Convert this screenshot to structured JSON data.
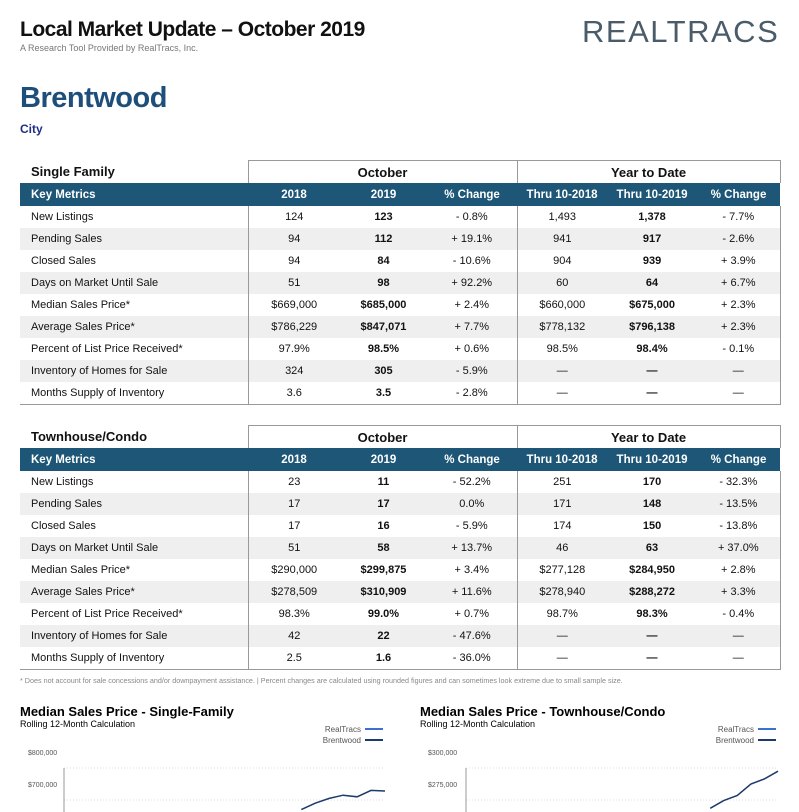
{
  "header": {
    "title": "Local Market Update – October 2019",
    "subtitle": "A Research Tool Provided by RealTracs, Inc.",
    "logo": "REALTRACS"
  },
  "location": {
    "name": "Brentwood",
    "type": "City"
  },
  "tables": [
    {
      "section": "Single Family",
      "groups": [
        "October",
        "Year to Date"
      ],
      "columns": [
        "Key Metrics",
        "2018",
        "2019",
        "% Change",
        "Thru 10-2018",
        "Thru 10-2019",
        "% Change"
      ],
      "rows": [
        [
          "New Listings",
          "124",
          "123",
          "- 0.8%",
          "1,493",
          "1,378",
          "- 7.7%"
        ],
        [
          "Pending Sales",
          "94",
          "112",
          "+ 19.1%",
          "941",
          "917",
          "- 2.6%"
        ],
        [
          "Closed Sales",
          "94",
          "84",
          "- 10.6%",
          "904",
          "939",
          "+ 3.9%"
        ],
        [
          "Days on Market Until Sale",
          "51",
          "98",
          "+ 92.2%",
          "60",
          "64",
          "+ 6.7%"
        ],
        [
          "Median Sales Price*",
          "$669,000",
          "$685,000",
          "+ 2.4%",
          "$660,000",
          "$675,000",
          "+ 2.3%"
        ],
        [
          "Average Sales Price*",
          "$786,229",
          "$847,071",
          "+ 7.7%",
          "$778,132",
          "$796,138",
          "+ 2.3%"
        ],
        [
          "Percent of List Price Received*",
          "97.9%",
          "98.5%",
          "+ 0.6%",
          "98.5%",
          "98.4%",
          "- 0.1%"
        ],
        [
          "Inventory of Homes for Sale",
          "324",
          "305",
          "- 5.9%",
          "—",
          "—",
          "—"
        ],
        [
          "Months Supply of Inventory",
          "3.6",
          "3.5",
          "- 2.8%",
          "—",
          "—",
          "—"
        ]
      ]
    },
    {
      "section": "Townhouse/Condo",
      "groups": [
        "October",
        "Year to Date"
      ],
      "columns": [
        "Key Metrics",
        "2018",
        "2019",
        "% Change",
        "Thru 10-2018",
        "Thru 10-2019",
        "% Change"
      ],
      "rows": [
        [
          "New Listings",
          "23",
          "11",
          "- 52.2%",
          "251",
          "170",
          "- 32.3%"
        ],
        [
          "Pending Sales",
          "17",
          "17",
          "0.0%",
          "171",
          "148",
          "- 13.5%"
        ],
        [
          "Closed Sales",
          "17",
          "16",
          "- 5.9%",
          "174",
          "150",
          "- 13.8%"
        ],
        [
          "Days on Market Until Sale",
          "51",
          "58",
          "+ 13.7%",
          "46",
          "63",
          "+ 37.0%"
        ],
        [
          "Median Sales Price*",
          "$290,000",
          "$299,875",
          "+ 3.4%",
          "$277,128",
          "$284,950",
          "+ 2.8%"
        ],
        [
          "Average Sales Price*",
          "$278,509",
          "$310,909",
          "+ 11.6%",
          "$278,940",
          "$288,272",
          "+ 3.3%"
        ],
        [
          "Percent of List Price Received*",
          "98.3%",
          "99.0%",
          "+ 0.7%",
          "98.7%",
          "98.3%",
          "- 0.4%"
        ],
        [
          "Inventory of Homes for Sale",
          "42",
          "22",
          "- 47.6%",
          "—",
          "—",
          "—"
        ],
        [
          "Months Supply of Inventory",
          "2.5",
          "1.6",
          "- 36.0%",
          "—",
          "—",
          "—"
        ]
      ]
    }
  ],
  "footnote": "* Does not account for sale concessions and/or downpayment assistance. | Percent changes are calculated using rounded figures and can sometimes look extreme due to small sample size.",
  "charts": [
    {
      "type": "line",
      "title": "Median Sales Price - Single-Family",
      "subtitle": "Rolling 12-Month Calculation",
      "ylim": [
        600000,
        800000
      ],
      "yticks": [
        {
          "value": 800000,
          "label": "$800,000"
        },
        {
          "value": 700000,
          "label": "$700,000"
        }
      ],
      "series": [
        {
          "name": "RealTracs",
          "color": "#3f6fd0",
          "values": [
            null,
            null,
            null,
            null,
            null,
            null,
            null,
            null,
            null,
            null,
            null,
            null,
            null,
            null,
            null,
            null,
            null,
            null,
            null,
            null,
            null,
            null,
            null,
            null
          ]
        },
        {
          "name": "Brentwood",
          "color": "#1c3a6b",
          "values": [
            null,
            null,
            null,
            null,
            null,
            null,
            null,
            null,
            null,
            null,
            null,
            null,
            null,
            null,
            null,
            null,
            null,
            620000,
            640000,
            655000,
            665000,
            660000,
            680000,
            678000
          ]
        }
      ]
    },
    {
      "type": "line",
      "title": "Median Sales Price - Townhouse/Condo",
      "subtitle": "Rolling 12-Month Calculation",
      "ylim": [
        250000,
        300000
      ],
      "yticks": [
        {
          "value": 300000,
          "label": "$300,000"
        },
        {
          "value": 275000,
          "label": "$275,000"
        }
      ],
      "series": [
        {
          "name": "RealTracs",
          "color": "#3f6fd0",
          "values": [
            null,
            null,
            null,
            null,
            null,
            null,
            null,
            null,
            null,
            null,
            null,
            null,
            null,
            null,
            null,
            null,
            null,
            null,
            null,
            null,
            null,
            null,
            null,
            null
          ]
        },
        {
          "name": "Brentwood",
          "color": "#1c3a6b",
          "values": [
            null,
            null,
            null,
            null,
            null,
            null,
            null,
            null,
            null,
            null,
            null,
            null,
            null,
            null,
            null,
            null,
            null,
            null,
            256000,
            262000,
            266000,
            275000,
            279000,
            285000
          ]
        }
      ]
    }
  ]
}
